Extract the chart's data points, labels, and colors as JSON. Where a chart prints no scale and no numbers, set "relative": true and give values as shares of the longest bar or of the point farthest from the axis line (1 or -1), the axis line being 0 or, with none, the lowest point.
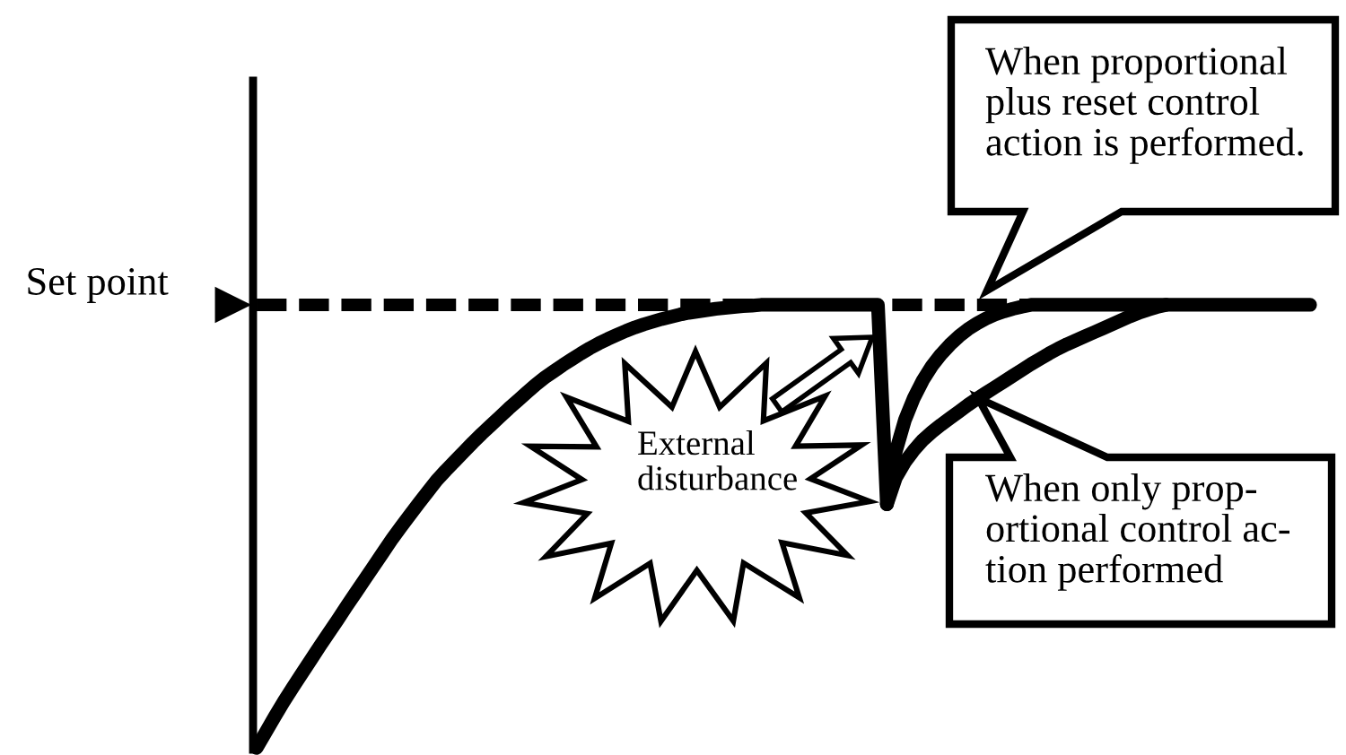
{
  "chart_data": {
    "type": "line",
    "relative": true,
    "categories": [
      null,
      null,
      null,
      null,
      null,
      null,
      null,
      null,
      null,
      null,
      null,
      null,
      null,
      null,
      null,
      null,
      null,
      null,
      null,
      null,
      null,
      null,
      null,
      null,
      null,
      null,
      null,
      null,
      null,
      null,
      null,
      null,
      null,
      null,
      null,
      null,
      null,
      null,
      null,
      null,
      null,
      null,
      null,
      null,
      null,
      null,
      null,
      null,
      null,
      null,
      null,
      null,
      null,
      null,
      null,
      null,
      null,
      null,
      null,
      null,
      null,
      null,
      null,
      null,
      null,
      null,
      null,
      null,
      null,
      null,
      null,
      null,
      null,
      null,
      null,
      null,
      null,
      null,
      null,
      null,
      null,
      null,
      null,
      null,
      null,
      null,
      null,
      null,
      null,
      null,
      null,
      null,
      null,
      null,
      null,
      null,
      null,
      null,
      null,
      null,
      null,
      null,
      null,
      null,
      null,
      null,
      null,
      null,
      null,
      null,
      null,
      null,
      null,
      null,
      null,
      null,
      null,
      null
    ],
    "series": [
      {
        "color": "#000000",
        "values": [
          0,
          0.035,
          0.07,
          0.104,
          0.136,
          0.167,
          0.198,
          0.229,
          0.259,
          0.289,
          0.32,
          0.35,
          0.38,
          0.41,
          0.44,
          0.47,
          0.498,
          0.525,
          0.552,
          0.578,
          0.604,
          0.626,
          0.647,
          0.668,
          0.689,
          0.709,
          0.728,
          0.747,
          0.766,
          0.784,
          0.802,
          0.82,
          0.836,
          0.85,
          0.864,
          0.877,
          0.89,
          0.902,
          0.913,
          0.923,
          0.932,
          0.941,
          0.949,
          0.956,
          0.962,
          0.968,
          0.973,
          0.978,
          0.982,
          0.985,
          0.988,
          0.991,
          0.993,
          0.995,
          0.997,
          0.998,
          1,
          1,
          1,
          1,
          1,
          1,
          1,
          1,
          1,
          1,
          1,
          1,
          1,
          1,
          0.55,
          null,
          null,
          null,
          null,
          null,
          null,
          null,
          null,
          null,
          null,
          null,
          null,
          null,
          null,
          null,
          null,
          null,
          null,
          null,
          null,
          null,
          null,
          null,
          null,
          null,
          null,
          null,
          null,
          null,
          null,
          null,
          null,
          null,
          null,
          null,
          null,
          null,
          null,
          null,
          null,
          null,
          null,
          null,
          null,
          null,
          null,
          null
        ]
      },
      {
        "color": "#000000",
        "values": [
          null,
          null,
          null,
          null,
          null,
          null,
          null,
          null,
          null,
          null,
          null,
          null,
          null,
          null,
          null,
          null,
          null,
          null,
          null,
          null,
          null,
          null,
          null,
          null,
          null,
          null,
          null,
          null,
          null,
          null,
          null,
          null,
          null,
          null,
          null,
          null,
          null,
          null,
          null,
          null,
          null,
          null,
          null,
          null,
          null,
          null,
          null,
          null,
          null,
          null,
          null,
          null,
          null,
          null,
          null,
          null,
          null,
          null,
          null,
          null,
          null,
          null,
          null,
          null,
          null,
          null,
          null,
          null,
          null,
          null,
          0.55,
          0.67,
          0.74,
          0.79,
          0.83,
          0.862,
          0.888,
          0.91,
          0.929,
          0.945,
          0.958,
          0.969,
          0.978,
          0.985,
          0.991,
          0.996,
          1,
          1,
          1,
          1,
          1,
          1,
          1,
          1,
          1,
          1,
          1,
          1,
          1,
          1,
          1,
          1,
          1,
          1,
          1,
          1,
          1,
          1,
          1,
          1,
          1,
          1,
          1,
          1,
          1,
          1,
          1,
          1
        ]
      },
      {
        "color": "#000000",
        "values": [
          null,
          null,
          null,
          null,
          null,
          null,
          null,
          null,
          null,
          null,
          null,
          null,
          null,
          null,
          null,
          null,
          null,
          null,
          null,
          null,
          null,
          null,
          null,
          null,
          null,
          null,
          null,
          null,
          null,
          null,
          null,
          null,
          null,
          null,
          null,
          null,
          null,
          null,
          null,
          null,
          null,
          null,
          null,
          null,
          null,
          null,
          null,
          null,
          null,
          null,
          null,
          null,
          null,
          null,
          null,
          null,
          null,
          null,
          null,
          null,
          null,
          null,
          null,
          null,
          null,
          null,
          null,
          null,
          null,
          null,
          0.55,
          0.61,
          0.645,
          0.672,
          0.695,
          0.713,
          0.729,
          0.744,
          0.759,
          0.774,
          0.788,
          0.801,
          0.814,
          0.827,
          0.84,
          0.853,
          0.866,
          0.878,
          0.89,
          0.901,
          0.911,
          0.92,
          0.929,
          0.938,
          0.947,
          0.956,
          0.965,
          0.974,
          0.982,
          0.989,
          0.995,
          1,
          null,
          null,
          null,
          null,
          null,
          null,
          null,
          null,
          null,
          null,
          null,
          null,
          null,
          null,
          null,
          null
        ]
      }
    ],
    "ref_lines": [
      {
        "axis": "y",
        "value": 1,
        "label": "Set point",
        "color": "#000000",
        "line_style": "dashed"
      }
    ],
    "annotations": [
      "When proportional\nplus reset control\naction is performed.",
      "When only prop-\nortional control ac-\ntion performed",
      "External\ndisturbance"
    ]
  }
}
